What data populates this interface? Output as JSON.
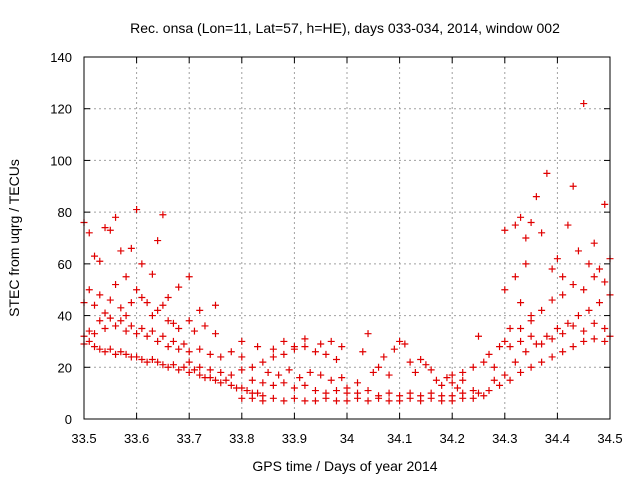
{
  "chart_data": {
    "type": "scatter",
    "title": "Rec. onsa (Lon=11, Lat=57, h=HE), days 033-034, 2014, window 002",
    "xlabel": "GPS time / Days of year 2014",
    "ylabel": "STEC from uqrg / TECUs",
    "xlim": [
      33.5,
      34.5
    ],
    "ylim": [
      0,
      140
    ],
    "xticks": [
      33.5,
      33.6,
      33.7,
      33.8,
      33.9,
      34,
      34.1,
      34.2,
      34.3,
      34.4,
      34.5
    ],
    "xtick_labels": [
      "33.5",
      "33.6",
      "33.7",
      "33.8",
      "33.9",
      "34",
      "34.1",
      "34.2",
      "34.3",
      "34.4",
      "34.5"
    ],
    "yticks": [
      0,
      20,
      40,
      60,
      80,
      100,
      120,
      140
    ],
    "ytick_labels": [
      "0",
      "20",
      "40",
      "60",
      "80",
      "100",
      "120",
      "140"
    ],
    "grid": true,
    "marker": "+",
    "color": "#e00000",
    "points": [
      [
        33.5,
        76
      ],
      [
        33.51,
        72
      ],
      [
        33.52,
        63
      ],
      [
        33.53,
        61
      ],
      [
        33.54,
        74
      ],
      [
        33.55,
        73
      ],
      [
        33.56,
        78
      ],
      [
        33.57,
        65
      ],
      [
        33.58,
        55
      ],
      [
        33.59,
        66
      ],
      [
        33.6,
        81
      ],
      [
        33.61,
        60
      ],
      [
        33.63,
        56
      ],
      [
        33.64,
        69
      ],
      [
        33.65,
        79
      ],
      [
        33.66,
        47
      ],
      [
        33.68,
        51
      ],
      [
        33.7,
        55
      ],
      [
        33.72,
        42
      ],
      [
        33.75,
        44
      ],
      [
        33.5,
        45
      ],
      [
        33.51,
        50
      ],
      [
        33.52,
        44
      ],
      [
        33.53,
        48
      ],
      [
        33.54,
        41
      ],
      [
        33.55,
        46
      ],
      [
        33.56,
        52
      ],
      [
        33.57,
        43
      ],
      [
        33.58,
        40
      ],
      [
        33.59,
        45
      ],
      [
        33.6,
        50
      ],
      [
        33.61,
        47
      ],
      [
        33.62,
        45
      ],
      [
        33.63,
        40
      ],
      [
        33.64,
        42
      ],
      [
        33.65,
        44
      ],
      [
        33.66,
        38
      ],
      [
        33.67,
        37
      ],
      [
        33.68,
        35
      ],
      [
        33.7,
        38
      ],
      [
        33.71,
        34
      ],
      [
        33.73,
        36
      ],
      [
        33.75,
        33
      ],
      [
        33.5,
        32
      ],
      [
        33.51,
        34
      ],
      [
        33.52,
        33
      ],
      [
        33.53,
        38
      ],
      [
        33.54,
        35
      ],
      [
        33.55,
        39
      ],
      [
        33.56,
        36
      ],
      [
        33.57,
        38
      ],
      [
        33.58,
        34
      ],
      [
        33.59,
        36
      ],
      [
        33.6,
        33
      ],
      [
        33.61,
        35
      ],
      [
        33.62,
        32
      ],
      [
        33.63,
        34
      ],
      [
        33.64,
        30
      ],
      [
        33.65,
        32
      ],
      [
        33.66,
        28
      ],
      [
        33.67,
        30
      ],
      [
        33.68,
        27
      ],
      [
        33.69,
        29
      ],
      [
        33.7,
        26
      ],
      [
        33.72,
        27
      ],
      [
        33.74,
        25
      ],
      [
        33.76,
        24
      ],
      [
        33.78,
        26
      ],
      [
        33.8,
        24
      ],
      [
        33.5,
        29
      ],
      [
        33.51,
        30
      ],
      [
        33.52,
        28
      ],
      [
        33.53,
        27
      ],
      [
        33.54,
        26
      ],
      [
        33.55,
        27
      ],
      [
        33.56,
        25
      ],
      [
        33.57,
        26
      ],
      [
        33.58,
        25
      ],
      [
        33.59,
        24
      ],
      [
        33.6,
        24
      ],
      [
        33.61,
        23
      ],
      [
        33.62,
        22
      ],
      [
        33.63,
        23
      ],
      [
        33.64,
        22
      ],
      [
        33.65,
        21
      ],
      [
        33.66,
        20
      ],
      [
        33.67,
        21
      ],
      [
        33.68,
        19
      ],
      [
        33.69,
        20
      ],
      [
        33.7,
        18
      ],
      [
        33.71,
        19
      ],
      [
        33.72,
        17
      ],
      [
        33.73,
        16
      ],
      [
        33.74,
        16
      ],
      [
        33.75,
        15
      ],
      [
        33.76,
        14
      ],
      [
        33.77,
        15
      ],
      [
        33.78,
        13
      ],
      [
        33.79,
        12
      ],
      [
        33.8,
        12
      ],
      [
        33.81,
        11
      ],
      [
        33.82,
        10
      ],
      [
        33.83,
        10
      ],
      [
        33.84,
        9
      ],
      [
        33.7,
        22
      ],
      [
        33.72,
        20
      ],
      [
        33.74,
        19
      ],
      [
        33.76,
        18
      ],
      [
        33.78,
        17
      ],
      [
        33.8,
        19
      ],
      [
        33.82,
        20
      ],
      [
        33.84,
        22
      ],
      [
        33.86,
        24
      ],
      [
        33.88,
        25
      ],
      [
        33.9,
        27
      ],
      [
        33.92,
        28
      ],
      [
        33.94,
        26
      ],
      [
        33.96,
        25
      ],
      [
        33.98,
        23
      ],
      [
        33.8,
        30
      ],
      [
        33.83,
        28
      ],
      [
        33.86,
        27
      ],
      [
        33.88,
        30
      ],
      [
        33.9,
        28
      ],
      [
        33.92,
        31
      ],
      [
        33.95,
        29
      ],
      [
        33.97,
        30
      ],
      [
        33.99,
        28
      ],
      [
        33.82,
        15
      ],
      [
        33.84,
        14
      ],
      [
        33.86,
        13
      ],
      [
        33.88,
        14
      ],
      [
        33.9,
        12
      ],
      [
        33.92,
        13
      ],
      [
        33.94,
        11
      ],
      [
        33.96,
        10
      ],
      [
        33.98,
        11
      ],
      [
        34.0,
        10
      ],
      [
        33.8,
        8
      ],
      [
        33.82,
        8
      ],
      [
        33.84,
        7
      ],
      [
        33.86,
        8
      ],
      [
        33.88,
        7
      ],
      [
        33.9,
        8
      ],
      [
        33.92,
        7
      ],
      [
        33.94,
        7
      ],
      [
        33.96,
        8
      ],
      [
        33.98,
        7
      ],
      [
        34.0,
        7
      ],
      [
        34.02,
        8
      ],
      [
        34.04,
        7
      ],
      [
        34.06,
        8
      ],
      [
        34.08,
        7
      ],
      [
        34.1,
        7
      ],
      [
        34.12,
        8
      ],
      [
        34.14,
        7
      ],
      [
        34.16,
        8
      ],
      [
        34.18,
        7
      ],
      [
        34.2,
        7
      ],
      [
        34.22,
        8
      ],
      [
        34.24,
        8
      ],
      [
        34.26,
        9
      ],
      [
        33.85,
        18
      ],
      [
        33.87,
        17
      ],
      [
        33.89,
        19
      ],
      [
        33.91,
        16
      ],
      [
        33.93,
        18
      ],
      [
        33.95,
        17
      ],
      [
        33.97,
        15
      ],
      [
        33.99,
        16
      ],
      [
        34.0,
        12
      ],
      [
        34.02,
        14
      ],
      [
        34.03,
        26
      ],
      [
        34.04,
        33
      ],
      [
        34.05,
        18
      ],
      [
        34.06,
        20
      ],
      [
        34.07,
        24
      ],
      [
        34.08,
        17
      ],
      [
        34.09,
        27
      ],
      [
        34.1,
        30
      ],
      [
        34.11,
        29
      ],
      [
        34.12,
        22
      ],
      [
        34.13,
        18
      ],
      [
        34.14,
        23
      ],
      [
        34.15,
        21
      ],
      [
        34.16,
        19
      ],
      [
        34.17,
        15
      ],
      [
        34.18,
        13
      ],
      [
        34.19,
        16
      ],
      [
        34.2,
        14
      ],
      [
        34.21,
        12
      ],
      [
        34.22,
        15
      ],
      [
        34.02,
        10
      ],
      [
        34.04,
        11
      ],
      [
        34.06,
        9
      ],
      [
        34.08,
        10
      ],
      [
        34.1,
        9
      ],
      [
        34.12,
        10
      ],
      [
        34.14,
        9
      ],
      [
        34.16,
        10
      ],
      [
        34.18,
        9
      ],
      [
        34.2,
        9
      ],
      [
        34.22,
        10
      ],
      [
        34.24,
        11
      ],
      [
        34.2,
        17
      ],
      [
        34.22,
        18
      ],
      [
        34.24,
        20
      ],
      [
        34.25,
        32
      ],
      [
        34.26,
        22
      ],
      [
        34.27,
        25
      ],
      [
        34.28,
        20
      ],
      [
        34.29,
        28
      ],
      [
        34.3,
        30
      ],
      [
        34.3,
        50
      ],
      [
        34.31,
        35
      ],
      [
        34.32,
        55
      ],
      [
        34.33,
        45
      ],
      [
        34.34,
        60
      ],
      [
        34.35,
        40
      ],
      [
        34.25,
        10
      ],
      [
        34.27,
        11
      ],
      [
        34.29,
        13
      ],
      [
        34.31,
        15
      ],
      [
        34.33,
        18
      ],
      [
        34.35,
        20
      ],
      [
        34.37,
        22
      ],
      [
        34.39,
        24
      ],
      [
        34.41,
        26
      ],
      [
        34.43,
        28
      ],
      [
        34.45,
        30
      ],
      [
        34.47,
        31
      ],
      [
        34.49,
        30
      ],
      [
        34.5,
        32
      ],
      [
        34.28,
        15
      ],
      [
        34.3,
        17
      ],
      [
        34.32,
        22
      ],
      [
        34.34,
        26
      ],
      [
        34.36,
        29
      ],
      [
        34.38,
        32
      ],
      [
        34.4,
        35
      ],
      [
        34.42,
        37
      ],
      [
        34.44,
        40
      ],
      [
        34.46,
        42
      ],
      [
        34.48,
        45
      ],
      [
        34.5,
        48
      ],
      [
        34.3,
        73
      ],
      [
        34.32,
        75
      ],
      [
        34.33,
        78
      ],
      [
        34.34,
        70
      ],
      [
        34.35,
        76
      ],
      [
        34.36,
        86
      ],
      [
        34.37,
        72
      ],
      [
        34.38,
        95
      ],
      [
        34.39,
        58
      ],
      [
        34.4,
        62
      ],
      [
        34.41,
        55
      ],
      [
        34.42,
        75
      ],
      [
        34.43,
        90
      ],
      [
        34.44,
        65
      ],
      [
        34.45,
        122
      ],
      [
        34.46,
        60
      ],
      [
        34.47,
        68
      ],
      [
        34.48,
        58
      ],
      [
        34.49,
        83
      ],
      [
        34.5,
        62
      ],
      [
        34.33,
        35
      ],
      [
        34.35,
        38
      ],
      [
        34.37,
        42
      ],
      [
        34.39,
        46
      ],
      [
        34.41,
        48
      ],
      [
        34.43,
        52
      ],
      [
        34.45,
        50
      ],
      [
        34.47,
        55
      ],
      [
        34.49,
        53
      ],
      [
        34.31,
        28
      ],
      [
        34.33,
        30
      ],
      [
        34.35,
        32
      ],
      [
        34.37,
        29
      ],
      [
        34.39,
        31
      ],
      [
        34.41,
        33
      ],
      [
        34.43,
        36
      ],
      [
        34.45,
        34
      ],
      [
        34.47,
        37
      ],
      [
        34.49,
        35
      ]
    ]
  }
}
